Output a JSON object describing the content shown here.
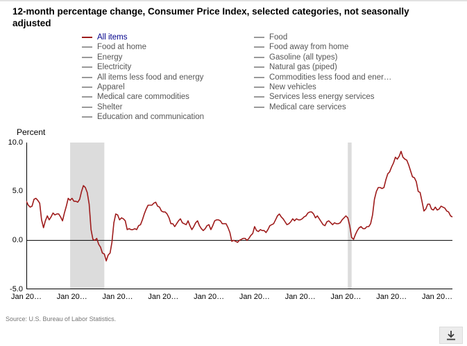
{
  "header": {
    "title": "12-month percentage change, Consumer Price Index, selected categories, not seasonally adjusted"
  },
  "legend": {
    "active_color": "#00008b",
    "inactive_text_color": "#555555",
    "inactive_swatch_color": "#999999",
    "col1": [
      {
        "label": "All items",
        "active": true
      },
      {
        "label": "Food at home",
        "active": false
      },
      {
        "label": "Energy",
        "active": false
      },
      {
        "label": "Electricity",
        "active": false
      },
      {
        "label": "All items less food and energy",
        "active": false
      },
      {
        "label": "Apparel",
        "active": false
      },
      {
        "label": "Medical care commodities",
        "active": false
      },
      {
        "label": "Shelter",
        "active": false
      },
      {
        "label": "Education and communication",
        "active": false
      }
    ],
    "col2": [
      {
        "label": "Food",
        "active": false
      },
      {
        "label": "Food away from home",
        "active": false
      },
      {
        "label": "Gasoline (all types)",
        "active": false
      },
      {
        "label": "Natural gas (piped)",
        "active": false
      },
      {
        "label": "Commodities less food and ener…",
        "active": false
      },
      {
        "label": "New vehicles",
        "active": false
      },
      {
        "label": "Services less energy services",
        "active": false
      },
      {
        "label": "Medical care services",
        "active": false
      }
    ]
  },
  "chart_data": {
    "type": "line",
    "title": "12-month percentage change, Consumer Price Index, selected categories, not seasonally adjusted",
    "ylabel": "Percent",
    "ylim": [
      -5.0,
      10.0
    ],
    "yticks": [
      {
        "label": "10.0",
        "value": 10.0
      },
      {
        "label": "5.0",
        "value": 5.0
      },
      {
        "label": "0.0",
        "value": 0.0
      },
      {
        "label": "-5.0",
        "value": -5.0
      }
    ],
    "x_start": "Jan 2006",
    "x_interval": "monthly",
    "xticks": [
      {
        "label": "Jan 20…",
        "index": 0
      },
      {
        "label": "Jan 20…",
        "index": 24
      },
      {
        "label": "Jan 20…",
        "index": 48
      },
      {
        "label": "Jan 20…",
        "index": 72
      },
      {
        "label": "Jan 20…",
        "index": 96
      },
      {
        "label": "Jan 20…",
        "index": 120
      },
      {
        "label": "Jan 20…",
        "index": 144
      },
      {
        "label": "Jan 20…",
        "index": 168
      },
      {
        "label": "Jan 20…",
        "index": 192
      },
      {
        "label": "Jan 20…",
        "index": 216
      }
    ],
    "recession_color": "#dcdcdc",
    "recession_bands": [
      {
        "start_index": 23,
        "end_index": 41
      },
      {
        "start_index": 169,
        "end_index": 171
      }
    ],
    "series": [
      {
        "name": "All items",
        "color": "#9e1b1b",
        "values": [
          4.0,
          3.6,
          3.4,
          3.5,
          4.2,
          4.3,
          4.1,
          3.8,
          2.1,
          1.3,
          2.0,
          2.5,
          2.1,
          2.4,
          2.8,
          2.6,
          2.7,
          2.7,
          2.4,
          2.0,
          2.8,
          3.5,
          4.3,
          4.1,
          4.3,
          4.0,
          4.0,
          3.9,
          4.2,
          5.0,
          5.6,
          5.4,
          4.9,
          3.7,
          1.1,
          0.1,
          0.0,
          0.2,
          -0.4,
          -0.7,
          -1.3,
          -1.4,
          -2.1,
          -1.5,
          -1.3,
          -0.2,
          1.8,
          2.7,
          2.6,
          2.1,
          2.3,
          2.2,
          2.0,
          1.1,
          1.2,
          1.1,
          1.1,
          1.2,
          1.1,
          1.5,
          1.6,
          2.1,
          2.7,
          3.2,
          3.6,
          3.6,
          3.6,
          3.8,
          3.9,
          3.5,
          3.4,
          3.0,
          2.9,
          2.9,
          2.7,
          2.3,
          1.7,
          1.7,
          1.4,
          1.7,
          2.0,
          2.2,
          1.8,
          1.7,
          1.6,
          2.0,
          1.5,
          1.1,
          1.4,
          1.8,
          2.0,
          1.5,
          1.2,
          1.0,
          1.2,
          1.5,
          1.6,
          1.1,
          1.5,
          2.0,
          2.1,
          2.1,
          2.0,
          1.7,
          1.7,
          1.7,
          1.3,
          0.8,
          -0.1,
          0.0,
          -0.1,
          -0.2,
          0.0,
          0.1,
          0.2,
          0.2,
          0.0,
          0.2,
          0.5,
          0.7,
          1.4,
          1.0,
          0.9,
          1.1,
          1.0,
          1.0,
          0.8,
          1.1,
          1.5,
          1.6,
          1.7,
          2.1,
          2.5,
          2.7,
          2.4,
          2.2,
          1.9,
          1.6,
          1.7,
          1.9,
          2.2,
          2.0,
          2.2,
          2.1,
          2.1,
          2.2,
          2.4,
          2.5,
          2.8,
          2.9,
          2.9,
          2.7,
          2.3,
          2.5,
          2.2,
          1.9,
          1.6,
          1.5,
          1.9,
          2.0,
          1.8,
          1.6,
          1.8,
          1.7,
          1.7,
          1.8,
          2.1,
          2.3,
          2.5,
          2.3,
          1.5,
          0.3,
          0.1,
          0.6,
          1.0,
          1.3,
          1.4,
          1.2,
          1.2,
          1.4,
          1.4,
          1.7,
          2.6,
          4.2,
          5.0,
          5.4,
          5.4,
          5.3,
          5.4,
          6.2,
          6.8,
          7.0,
          7.5,
          7.9,
          8.5,
          8.3,
          8.6,
          9.1,
          8.5,
          8.3,
          8.2,
          7.7,
          7.1,
          6.5,
          6.4,
          6.0,
          5.0,
          4.9,
          4.0,
          3.0,
          3.2,
          3.7,
          3.7,
          3.2,
          3.1,
          3.4,
          3.1,
          3.2,
          3.5,
          3.4,
          3.3,
          3.0,
          2.9,
          2.5,
          2.4
        ]
      }
    ],
    "legend_position": "top"
  },
  "footer": {
    "source": "Source: U.S. Bureau of Labor Statistics.",
    "download_icon": "download-icon"
  }
}
